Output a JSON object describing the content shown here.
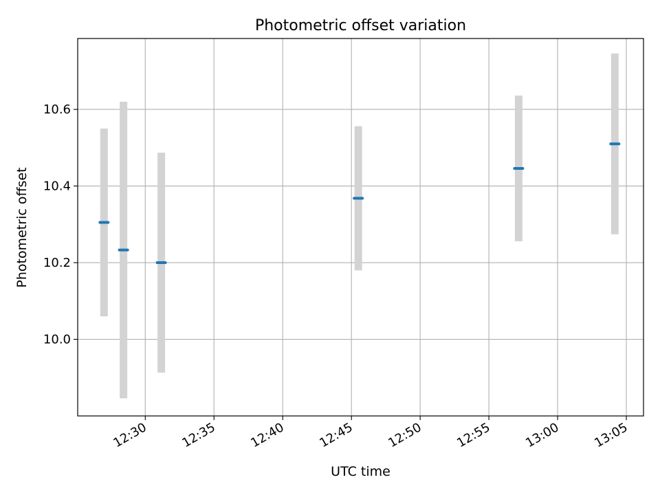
{
  "chart_data": {
    "type": "scatter",
    "title": "Photometric offset variation",
    "xlabel": "UTC time",
    "ylabel": "Photometric offset",
    "x_ticks": [
      "12:30",
      "12:35",
      "12:40",
      "12:45",
      "12:50",
      "12:55",
      "13:00",
      "13:05"
    ],
    "y_ticks": [
      10.0,
      10.2,
      10.4,
      10.6
    ],
    "xlim": [
      "12:25:05",
      "13:06:15"
    ],
    "ylim": [
      9.8,
      10.785
    ],
    "grid": true,
    "points": [
      {
        "x": "12:27:00",
        "y": 10.305,
        "err": 0.245
      },
      {
        "x": "12:28:25",
        "y": 10.233,
        "err": 0.387
      },
      {
        "x": "12:31:10",
        "y": 10.2,
        "err": 0.287
      },
      {
        "x": "12:45:30",
        "y": 10.368,
        "err": 0.188
      },
      {
        "x": "12:57:10",
        "y": 10.446,
        "err": 0.19
      },
      {
        "x": "13:04:10",
        "y": 10.51,
        "err": 0.236
      }
    ],
    "colors": {
      "point": "#1f77b4",
      "errorbar": "#d3d3d3",
      "grid": "#b0b0b0",
      "axis": "#000000"
    }
  }
}
